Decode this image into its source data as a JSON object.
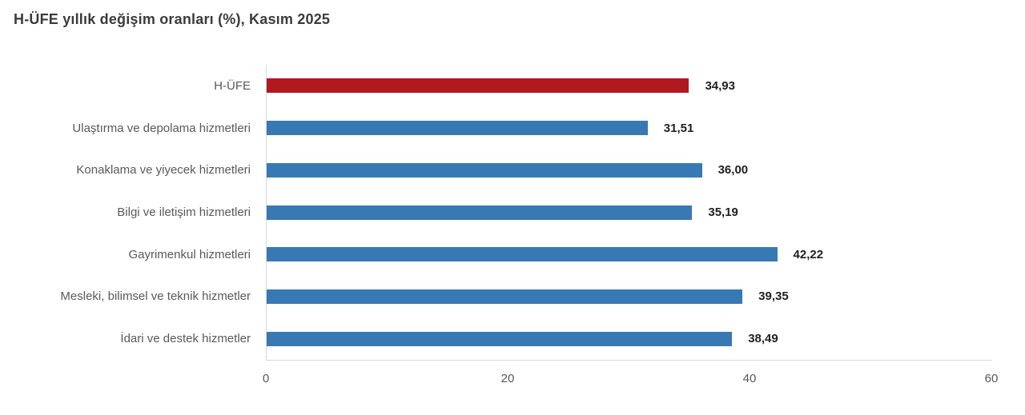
{
  "title": "H-ÜFE yıllık değişim oranları (%), Kasım 2025",
  "chart_data": {
    "type": "bar",
    "orientation": "horizontal",
    "title": "H-ÜFE yıllık değişim oranları (%), Kasım 2025",
    "categories": [
      "H-ÜFE",
      "Ulaştırma ve depolama hizmetleri",
      "Konaklama ve yiyecek hizmetleri",
      "Bilgi ve iletişim hizmetleri",
      "Gayrimenkul hizmetleri",
      "Mesleki, bilimsel ve teknik hizmetler",
      "İdari ve destek hizmetler"
    ],
    "values": [
      34.93,
      31.51,
      36.0,
      35.19,
      42.22,
      39.35,
      38.49
    ],
    "value_labels": [
      "34,93",
      "31,51",
      "36,00",
      "35,19",
      "42,22",
      "39,35",
      "38,49"
    ],
    "xlim": [
      0,
      60
    ],
    "x_ticks": [
      0,
      20,
      40,
      60
    ],
    "xlabel": "",
    "ylabel": "",
    "grid": false,
    "legend": "none",
    "highlight_index": 0,
    "highlight_color": "#b1181f",
    "bar_color": "#3879b3",
    "axis_line_color": "#d9d9d9",
    "label_color": "#595959",
    "value_label_color": "#1f1f1f",
    "title_color": "#3b3b3b"
  }
}
